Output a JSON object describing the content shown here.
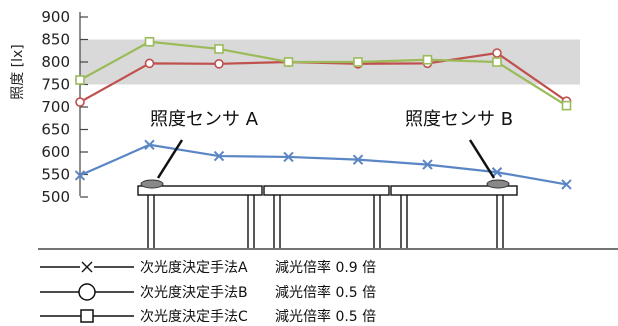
{
  "chart_data": {
    "type": "line",
    "ylabel": "照度 [lx]",
    "ylim": [
      500,
      900
    ],
    "yticks": [
      "900",
      "850",
      "800",
      "750",
      "700",
      "650",
      "600",
      "550",
      "500"
    ],
    "target_band": [
      750,
      850
    ],
    "x": [
      1,
      2,
      3,
      4,
      5,
      6,
      7,
      8
    ],
    "series": [
      {
        "name": "次光度決定手法A",
        "marker": "x",
        "color": "#5b86c5",
        "values": [
          548,
          616,
          591,
          589,
          583,
          572,
          555,
          528
        ]
      },
      {
        "name": "次光度決定手法B",
        "marker": "circle",
        "color": "#c0504d",
        "values": [
          711,
          797,
          796,
          800,
          796,
          797,
          820,
          713
        ]
      },
      {
        "name": "次光度決定手法C",
        "marker": "square",
        "color": "#9bbb59",
        "values": [
          760,
          845,
          829,
          800,
          800,
          805,
          800,
          703
        ]
      }
    ],
    "annotations": [
      "照度センサ A",
      "照度センサ B"
    ],
    "legend": [
      {
        "label": "次光度決定手法A",
        "note": "減光倍率 0.9 倍",
        "marker": "x"
      },
      {
        "label": "次光度決定手法B",
        "note": "減光倍率 0.5 倍",
        "marker": "circle"
      },
      {
        "label": "次光度決定手法C",
        "note": "減光倍率 0.5 倍",
        "marker": "square"
      }
    ]
  }
}
